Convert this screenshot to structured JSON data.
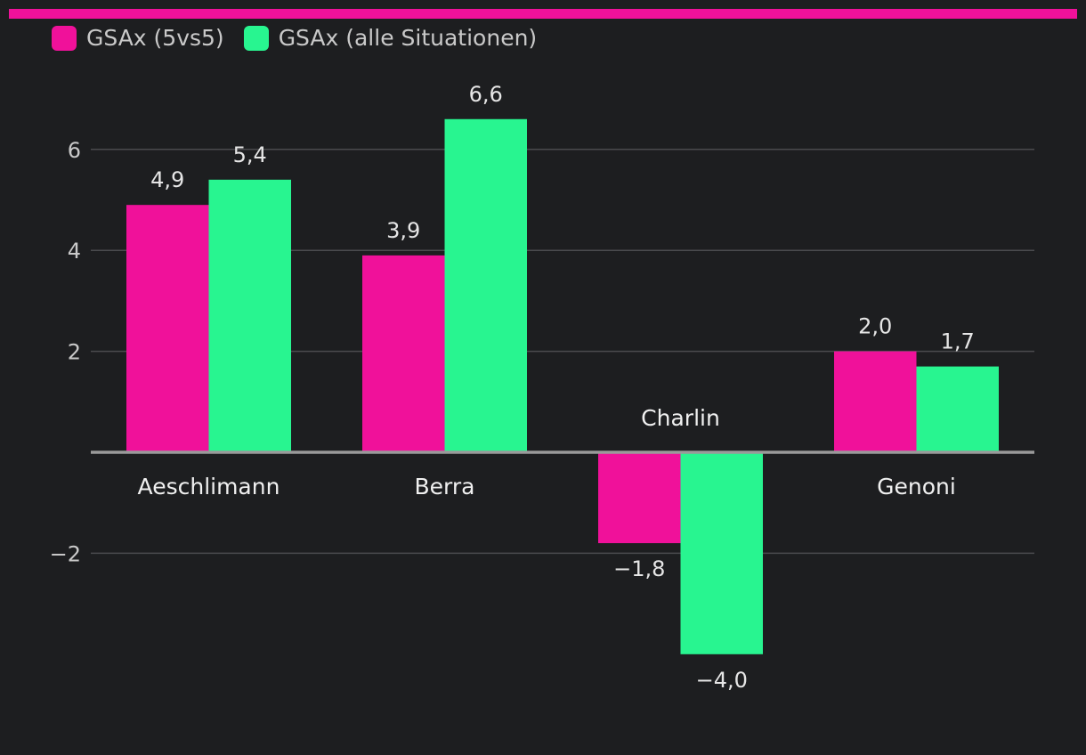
{
  "chart_data": {
    "type": "bar",
    "title": "",
    "xlabel": "",
    "ylabel": "",
    "categories": [
      "Aeschlimann",
      "Berra",
      "Charlin",
      "Genoni"
    ],
    "series": [
      {
        "name": "GSAx (5vs5)",
        "values": [
          4.9,
          3.9,
          -1.8,
          2.0
        ],
        "labels": [
          "4,9",
          "3,9",
          "−1,8",
          "2,0"
        ],
        "color": "#f0119a"
      },
      {
        "name": "GSAx (alle Situationen)",
        "values": [
          5.4,
          6.6,
          -4.0,
          1.7
        ],
        "labels": [
          "5,4",
          "6,6",
          "−4,0",
          "1,7"
        ],
        "color": "#28f590"
      }
    ],
    "yticks": [
      -2,
      2,
      4,
      6
    ],
    "ytick_labels": [
      "−2",
      "2",
      "4",
      "6"
    ],
    "ylim": [
      -5,
      7.5
    ],
    "grid": true,
    "legend_position": "top-left"
  },
  "colors": {
    "accent": "#f0119a",
    "background": "#1d1e20",
    "gridline": "#4a4b4e",
    "axis": "#9a9a9a"
  }
}
